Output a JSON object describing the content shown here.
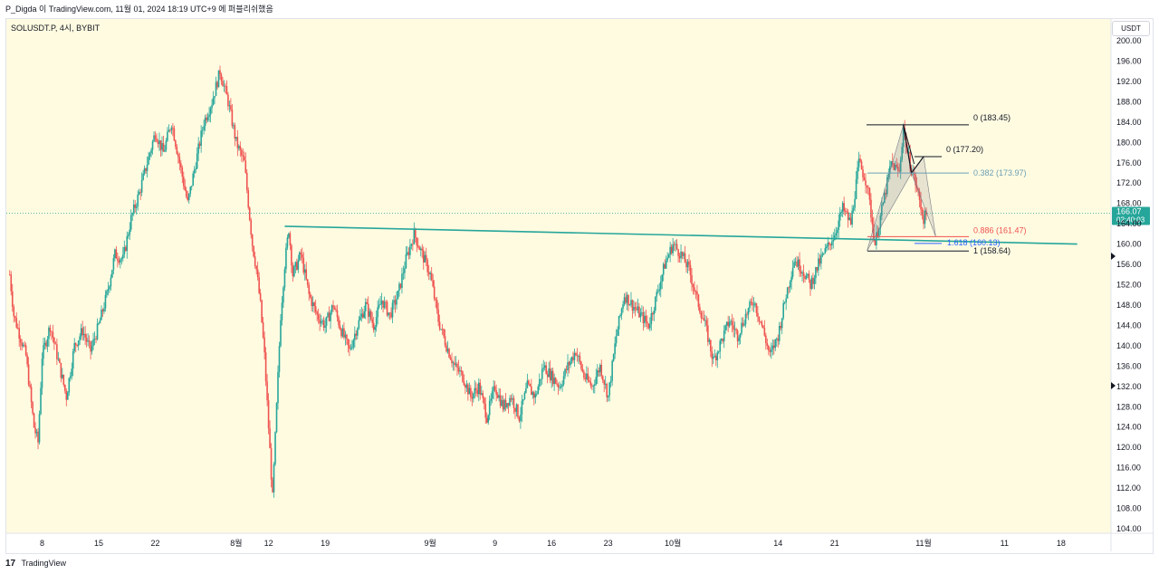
{
  "header": {
    "text": "P_Digda 이 TradingView.com, 11월 01, 2024 18:19 UTC+9 에 퍼블리쉬했음"
  },
  "symbol": {
    "label": "SOLUSDT.P, 4시, BYBIT"
  },
  "currency_button": "USDT",
  "footer": {
    "logo": "17",
    "brand": "TradingView"
  },
  "colors": {
    "up": "#26a69a",
    "down": "#ef5350",
    "trendline": "#26a69a",
    "background": "#fffbe1"
  },
  "chart_data": {
    "type": "candlestick",
    "price_axis": {
      "min": 104,
      "max": 200,
      "ticks": [
        200,
        196,
        192,
        188,
        184,
        180,
        176,
        172,
        168,
        164,
        160,
        156,
        152,
        148,
        144,
        140,
        136,
        132,
        128,
        124,
        120,
        116,
        112,
        108,
        104
      ]
    },
    "current_price": {
      "value": "166.07",
      "countdown": "02:40:03"
    },
    "time_ticks": [
      {
        "label": "8",
        "day": 0
      },
      {
        "label": "15",
        "day": 7
      },
      {
        "label": "22",
        "day": 14
      },
      {
        "label": "8월",
        "day": 24
      },
      {
        "label": "12",
        "day": 28
      },
      {
        "label": "19",
        "day": 35
      },
      {
        "label": "9월",
        "day": 48
      },
      {
        "label": "9",
        "day": 56
      },
      {
        "label": "16",
        "day": 63
      },
      {
        "label": "23",
        "day": 70
      },
      {
        "label": "10월",
        "day": 78
      },
      {
        "label": "14",
        "day": 91
      },
      {
        "label": "21",
        "day": 98
      },
      {
        "label": "11월",
        "day": 109
      },
      {
        "label": "11",
        "day": 119
      },
      {
        "label": "18",
        "day": 126
      }
    ],
    "price_path": [
      [
        -4,
        154
      ],
      [
        -3.5,
        146
      ],
      [
        -2,
        138
      ],
      [
        -1,
        124
      ],
      [
        -0.5,
        121
      ],
      [
        0,
        138
      ],
      [
        1,
        144
      ],
      [
        2,
        137
      ],
      [
        3,
        130
      ],
      [
        4,
        140
      ],
      [
        5,
        143
      ],
      [
        6,
        139
      ],
      [
        7,
        144
      ],
      [
        8,
        150
      ],
      [
        9,
        158
      ],
      [
        10,
        157
      ],
      [
        11,
        165
      ],
      [
        12,
        170
      ],
      [
        13,
        176
      ],
      [
        14,
        182
      ],
      [
        15,
        178
      ],
      [
        16,
        184
      ],
      [
        17,
        176
      ],
      [
        18,
        168
      ],
      [
        19,
        176
      ],
      [
        20,
        184
      ],
      [
        21,
        188
      ],
      [
        22,
        194
      ],
      [
        23,
        188
      ],
      [
        24,
        180
      ],
      [
        25,
        176
      ],
      [
        25.5,
        168
      ],
      [
        26,
        160
      ],
      [
        26.5,
        155
      ],
      [
        27,
        148
      ],
      [
        27.5,
        138
      ],
      [
        28,
        124
      ],
      [
        28.5,
        110
      ],
      [
        29,
        128
      ],
      [
        29.5,
        146
      ],
      [
        30,
        156
      ],
      [
        30.5,
        163
      ],
      [
        31,
        154
      ],
      [
        32,
        158
      ],
      [
        33,
        150
      ],
      [
        34,
        146
      ],
      [
        35,
        144
      ],
      [
        36,
        148
      ],
      [
        37,
        143
      ],
      [
        38,
        139
      ],
      [
        39,
        144
      ],
      [
        40,
        148
      ],
      [
        41,
        144
      ],
      [
        42,
        149
      ],
      [
        43,
        146
      ],
      [
        44,
        150
      ],
      [
        45,
        157
      ],
      [
        46,
        162
      ],
      [
        47,
        158
      ],
      [
        48,
        154
      ],
      [
        49,
        145
      ],
      [
        50,
        140
      ],
      [
        51,
        136
      ],
      [
        52,
        134
      ],
      [
        53,
        130
      ],
      [
        54,
        132
      ],
      [
        55,
        126
      ],
      [
        56,
        132
      ],
      [
        57,
        128
      ],
      [
        58,
        130
      ],
      [
        59,
        126
      ],
      [
        60,
        132
      ],
      [
        61,
        130
      ],
      [
        62,
        136
      ],
      [
        63,
        134
      ],
      [
        64,
        132
      ],
      [
        65,
        136
      ],
      [
        66,
        139
      ],
      [
        67,
        134
      ],
      [
        68,
        132
      ],
      [
        69,
        136
      ],
      [
        70,
        130
      ],
      [
        71,
        142
      ],
      [
        72,
        150
      ],
      [
        73,
        148
      ],
      [
        74,
        146
      ],
      [
        75,
        144
      ],
      [
        76,
        150
      ],
      [
        77,
        156
      ],
      [
        78,
        160
      ],
      [
        79,
        158
      ],
      [
        80,
        155
      ],
      [
        81,
        149
      ],
      [
        82,
        144
      ],
      [
        83,
        137
      ],
      [
        84,
        141
      ],
      [
        85,
        145
      ],
      [
        86,
        142
      ],
      [
        87,
        146
      ],
      [
        88,
        149
      ],
      [
        89,
        144
      ],
      [
        90,
        138
      ],
      [
        91,
        142
      ],
      [
        92,
        150
      ],
      [
        93,
        157
      ],
      [
        94,
        155
      ],
      [
        95,
        152
      ],
      [
        96,
        156
      ],
      [
        97,
        159
      ],
      [
        98,
        162
      ],
      [
        99,
        167
      ],
      [
        100,
        164
      ],
      [
        101,
        176
      ],
      [
        102,
        172
      ],
      [
        103,
        160
      ],
      [
        104,
        168
      ],
      [
        105,
        176
      ],
      [
        106,
        174
      ],
      [
        106.5,
        183
      ],
      [
        107,
        178
      ],
      [
        108,
        172
      ],
      [
        109,
        165
      ],
      [
        109.5,
        166
      ]
    ],
    "trendline": [
      {
        "day": 30,
        "price": 163.5
      },
      {
        "day": 128,
        "price": 160.0
      }
    ],
    "fib_levels": [
      {
        "label": "0 (183.45)",
        "price": 183.45,
        "color": "#131722"
      },
      {
        "label": "0 (177.20)",
        "price": 177.2,
        "color": "#131722"
      },
      {
        "label": "0.382 (173.97)",
        "price": 173.97,
        "color": "#6a9fb5"
      },
      {
        "label": "0.886 (161.47)",
        "price": 161.47,
        "color": "#ef5350"
      },
      {
        "label": "1.618 (160.13)",
        "price": 160.13,
        "color": "#2962ff"
      },
      {
        "label": "1 (158.64)",
        "price": 158.64,
        "color": "#131722"
      }
    ],
    "pattern": {
      "points": [
        {
          "day": 102,
          "price": 158.64
        },
        {
          "day": 106.5,
          "price": 183.45
        },
        {
          "day": 107.5,
          "price": 173.97
        },
        {
          "day": 109,
          "price": 177.2
        },
        {
          "day": 110.5,
          "price": 161.47
        }
      ]
    }
  }
}
